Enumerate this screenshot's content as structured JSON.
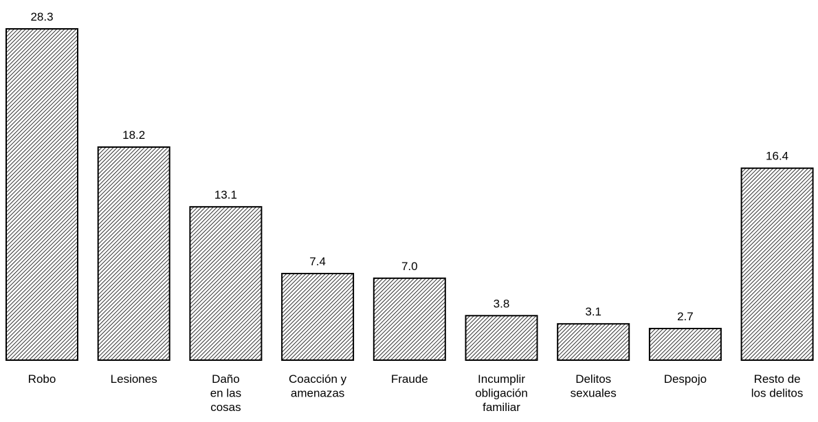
{
  "chart_data": {
    "type": "bar",
    "categories": [
      [
        "Robo"
      ],
      [
        "Lesiones"
      ],
      [
        "Daño",
        "en las",
        "cosas"
      ],
      [
        "Coacción y",
        "amenazas"
      ],
      [
        "Fraude"
      ],
      [
        "Incumplir",
        "obligación",
        "familiar"
      ],
      [
        "Delitos",
        "sexuales"
      ],
      [
        "Despojo"
      ],
      [
        "Resto de",
        "los delitos"
      ]
    ],
    "values": [
      28.3,
      18.2,
      13.1,
      7.4,
      7.0,
      3.8,
      3.1,
      2.7,
      16.4
    ],
    "data_labels": [
      "28.3",
      "18.2",
      "13.1",
      "7.4",
      "7.0",
      "3.8",
      "3.1",
      "2.7",
      "16.4"
    ],
    "title": "",
    "xlabel": "",
    "ylabel": "",
    "ylim": [
      0,
      28.3
    ],
    "grid": false,
    "legend": "none",
    "bar_fill": "diagonal-hatch",
    "colors": {
      "bar_stroke": "#000000",
      "hatch": "#000000",
      "background": "#ffffff"
    }
  }
}
